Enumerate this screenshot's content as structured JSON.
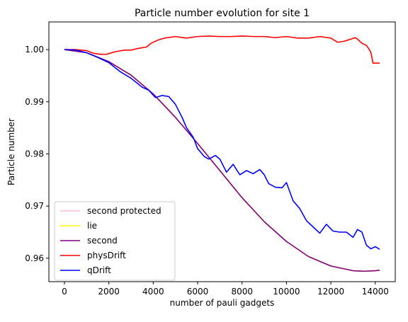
{
  "chart_data": {
    "type": "line",
    "title": "Particle number evolution for site 1",
    "xlabel": "number of pauli gadgets",
    "ylabel": "Particle number",
    "xlim": [
      -700,
      14900
    ],
    "ylim": [
      0.9555,
      1.0053
    ],
    "xticks": [
      0,
      2000,
      4000,
      6000,
      8000,
      10000,
      12000,
      14000
    ],
    "xtick_labels": [
      "0",
      "2000",
      "4000",
      "6000",
      "8000",
      "10000",
      "12000",
      "14000"
    ],
    "yticks": [
      0.96,
      0.97,
      0.98,
      0.99,
      1.0
    ],
    "ytick_labels": [
      "0.96",
      "0.97",
      "0.98",
      "0.99",
      "1.00"
    ],
    "grid": false,
    "legend_position": "lower-left",
    "series": [
      {
        "name": "second protected",
        "color": "#ffc0cb",
        "x": [
          0,
          1000,
          2000,
          3000,
          4000,
          5000,
          6000,
          7000,
          8000,
          9000,
          10000,
          11000,
          12000,
          13000,
          13500,
          14000,
          14200
        ],
        "y": [
          1.0,
          0.9994,
          0.9977,
          0.9951,
          0.9915,
          0.987,
          0.982,
          0.9768,
          0.9716,
          0.967,
          0.9632,
          0.9603,
          0.9585,
          0.9576,
          0.9575,
          0.9576,
          0.9577
        ]
      },
      {
        "name": "lie",
        "color": "#ffff00",
        "x": [
          0,
          1000,
          2000,
          3000,
          4000,
          5000,
          6000,
          7000,
          8000,
          9000,
          10000,
          11000,
          12000,
          13000,
          13500,
          14000,
          14200
        ],
        "y": [
          1.0,
          0.9994,
          0.9977,
          0.9951,
          0.9915,
          0.987,
          0.982,
          0.9768,
          0.9716,
          0.967,
          0.9632,
          0.9603,
          0.9585,
          0.9576,
          0.9575,
          0.9576,
          0.9577
        ]
      },
      {
        "name": "second",
        "color": "#800080",
        "x": [
          0,
          1000,
          2000,
          3000,
          4000,
          5000,
          6000,
          7000,
          8000,
          9000,
          10000,
          11000,
          12000,
          13000,
          13500,
          14000,
          14200
        ],
        "y": [
          1.0,
          0.9994,
          0.9977,
          0.9951,
          0.9915,
          0.987,
          0.982,
          0.9768,
          0.9716,
          0.967,
          0.9632,
          0.9603,
          0.9585,
          0.9576,
          0.9575,
          0.9576,
          0.9577
        ]
      },
      {
        "name": "physDrift",
        "color": "#ff0000",
        "x": [
          0,
          500,
          1000,
          1300,
          1600,
          1900,
          2300,
          2700,
          3000,
          3300,
          3700,
          3900,
          4200,
          4500,
          5000,
          5500,
          6000,
          6500,
          7000,
          7500,
          8000,
          8500,
          9000,
          9500,
          10000,
          10500,
          11000,
          11500,
          12000,
          12300,
          12600,
          12900,
          13100,
          13200,
          13400,
          13600,
          13700,
          13800,
          13900,
          14200
        ],
        "y": [
          1.0,
          1.0,
          0.9998,
          0.9993,
          0.9991,
          0.9991,
          0.9996,
          0.9999,
          0.9999,
          1.0002,
          1.0005,
          1.0012,
          1.0018,
          1.0022,
          1.0025,
          1.0022,
          1.0025,
          1.0026,
          1.0025,
          1.0025,
          1.0026,
          1.0025,
          1.0025,
          1.0023,
          1.0025,
          1.0022,
          1.0022,
          1.0025,
          1.0022,
          1.0014,
          1.0016,
          1.002,
          1.0023,
          1.002,
          1.0012,
          1.0008,
          1.0002,
          0.9995,
          0.9974,
          0.9974
        ]
      },
      {
        "name": "qDrift",
        "color": "#0000ff",
        "x": [
          0,
          500,
          1000,
          1500,
          2000,
          2500,
          3000,
          3500,
          3800,
          4100,
          4400,
          4700,
          5000,
          5300,
          5500,
          5800,
          6000,
          6300,
          6500,
          6800,
          7000,
          7300,
          7600,
          7900,
          8200,
          8500,
          8800,
          9000,
          9200,
          9500,
          9800,
          10000,
          10300,
          10600,
          10900,
          11200,
          11500,
          11800,
          12100,
          12400,
          12700,
          13000,
          13200,
          13400,
          13600,
          13800,
          14000,
          14200
        ],
        "y": [
          1.0,
          0.9999,
          0.9994,
          0.9985,
          0.9975,
          0.9958,
          0.9945,
          0.9928,
          0.9922,
          0.9908,
          0.9912,
          0.991,
          0.9895,
          0.987,
          0.985,
          0.9832,
          0.981,
          0.9795,
          0.979,
          0.9797,
          0.979,
          0.9765,
          0.978,
          0.976,
          0.9768,
          0.9762,
          0.977,
          0.976,
          0.9743,
          0.9736,
          0.9735,
          0.9745,
          0.971,
          0.9695,
          0.9672,
          0.966,
          0.9648,
          0.9665,
          0.9652,
          0.965,
          0.965,
          0.964,
          0.9655,
          0.965,
          0.9625,
          0.9618,
          0.9622,
          0.9617
        ]
      }
    ]
  }
}
